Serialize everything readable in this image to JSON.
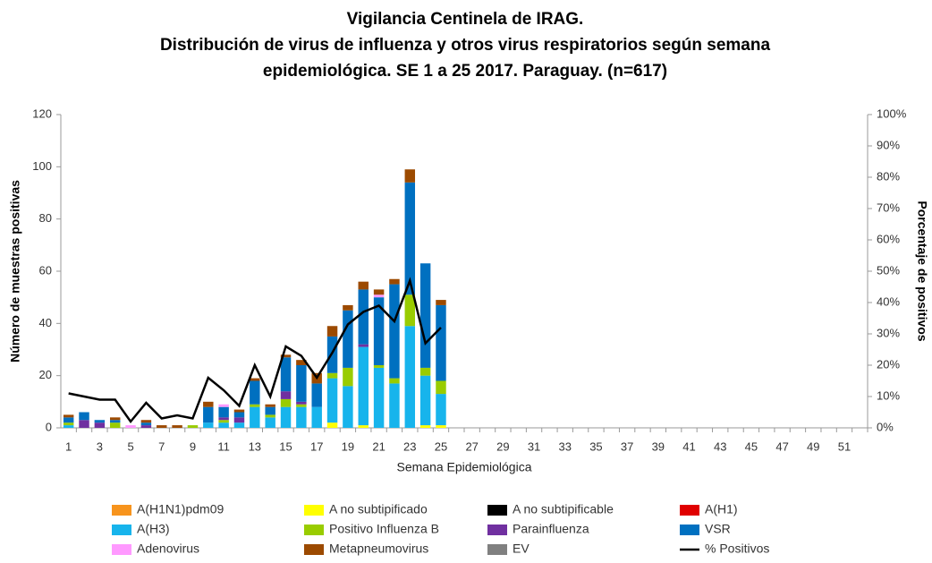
{
  "chart_data": {
    "type": "bar",
    "stacked": true,
    "title": [
      "Vigilancia Centinela de IRAG.",
      "Distribución de virus de influenza y otros virus respiratorios según semana",
      "epidemiológica. SE 1 a 25 2017. Paraguay. (n=617)"
    ],
    "x_label": "Semana Epidemiológica",
    "y_label": "Número de muestras positivas",
    "y2_label": "Porcentaje de positivos",
    "categories": [
      1,
      null,
      3,
      null,
      5,
      null,
      7,
      null,
      9,
      null,
      11,
      null,
      13,
      null,
      15,
      null,
      17,
      null,
      19,
      null,
      21,
      null,
      23,
      null,
      25,
      null,
      27,
      null,
      29,
      null,
      31,
      null,
      33,
      null,
      35,
      null,
      37,
      null,
      39,
      null,
      41,
      null,
      43,
      null,
      45,
      null,
      47,
      null,
      49,
      null,
      51,
      null
    ],
    "ylim": [
      0,
      120
    ],
    "yticks": [
      0,
      20,
      40,
      60,
      80,
      100,
      120
    ],
    "y2lim": [
      0,
      100
    ],
    "y2ticks": [
      {
        "value": 0,
        "label": "0%"
      },
      {
        "value": 10,
        "label": "10%"
      },
      {
        "value": 20,
        "label": "20%"
      },
      {
        "value": 30,
        "label": "30%"
      },
      {
        "value": 40,
        "label": "40%"
      },
      {
        "value": 50,
        "label": "50%"
      },
      {
        "value": 60,
        "label": "60%"
      },
      {
        "value": 70,
        "label": "70%"
      },
      {
        "value": 80,
        "label": "80%"
      },
      {
        "value": 90,
        "label": "90%"
      },
      {
        "value": 100,
        "label": "100%"
      }
    ],
    "series": [
      {
        "name": "A(H1N1)pdm09",
        "color": "#f7941d",
        "values": [
          0,
          0,
          0,
          0,
          0,
          0,
          0,
          0,
          0,
          0,
          0,
          0,
          0,
          0,
          0,
          0,
          0,
          0,
          0,
          0,
          0,
          0,
          0,
          0,
          0,
          null,
          null,
          null,
          null,
          null,
          null,
          null,
          null,
          null,
          null,
          null,
          null,
          null,
          null,
          null,
          null,
          null,
          null,
          null,
          null,
          null,
          null,
          null,
          null,
          null,
          null,
          null
        ]
      },
      {
        "name": "A no subtipificado",
        "color": "#ffff00",
        "values": [
          0,
          0,
          0,
          0,
          0,
          0,
          0,
          0,
          0,
          0,
          0,
          0,
          0,
          0,
          0,
          0,
          0,
          2,
          0,
          1,
          0,
          0,
          0,
          1,
          1,
          null,
          null,
          null,
          null,
          null,
          null,
          null,
          null,
          null,
          null,
          null,
          null,
          null,
          null,
          null,
          null,
          null,
          null,
          null,
          null,
          null,
          null,
          null,
          null,
          null,
          null,
          null
        ]
      },
      {
        "name": "A no subtipificable",
        "color": "#000000",
        "values": [
          0,
          0,
          0,
          0,
          0,
          0,
          0,
          0,
          0,
          0,
          0,
          0,
          0,
          0,
          0,
          0,
          0,
          0,
          0,
          0,
          0,
          0,
          0,
          0,
          0,
          null,
          null,
          null,
          null,
          null,
          null,
          null,
          null,
          null,
          null,
          null,
          null,
          null,
          null,
          null,
          null,
          null,
          null,
          null,
          null,
          null,
          null,
          null,
          null,
          null,
          null,
          null
        ]
      },
      {
        "name": "A(H1)",
        "color": "#e00000",
        "values": [
          0,
          0,
          0,
          0,
          0,
          0,
          0,
          0,
          0,
          0,
          0,
          0,
          0,
          0,
          0,
          0,
          0,
          0,
          0,
          0,
          0,
          0,
          0,
          0,
          0,
          null,
          null,
          null,
          null,
          null,
          null,
          null,
          null,
          null,
          null,
          null,
          null,
          null,
          null,
          null,
          null,
          null,
          null,
          null,
          null,
          null,
          null,
          null,
          null,
          null,
          null,
          null
        ]
      },
      {
        "name": "A(H3)",
        "color": "#17b4ec",
        "values": [
          1,
          0,
          0,
          0,
          0,
          0,
          0,
          0,
          0,
          2,
          2,
          2,
          8,
          4,
          8,
          8,
          8,
          17,
          16,
          30,
          23,
          17,
          39,
          19,
          12,
          null,
          null,
          null,
          null,
          null,
          null,
          null,
          null,
          null,
          null,
          null,
          null,
          null,
          null,
          null,
          null,
          null,
          null,
          null,
          null,
          null,
          null,
          null,
          null,
          null,
          null,
          null
        ]
      },
      {
        "name": "Positivo Influenza  B",
        "color": "#99cc00",
        "values": [
          1,
          0,
          0,
          2,
          0,
          0,
          0,
          0,
          1,
          0,
          1,
          0,
          1,
          1,
          3,
          1,
          0,
          2,
          7,
          0,
          1,
          2,
          12,
          3,
          5,
          null,
          null,
          null,
          null,
          null,
          null,
          null,
          null,
          null,
          null,
          null,
          null,
          null,
          null,
          null,
          null,
          null,
          null,
          null,
          null,
          null,
          null,
          null,
          null,
          null,
          null,
          null
        ]
      },
      {
        "name": "Parainfluenza",
        "color": "#7030a0",
        "values": [
          0,
          3,
          2,
          0,
          0,
          1,
          0,
          0,
          0,
          0,
          1,
          2,
          0,
          0,
          3,
          1,
          0,
          0,
          0,
          1,
          0,
          0,
          0,
          0,
          0,
          null,
          null,
          null,
          null,
          null,
          null,
          null,
          null,
          null,
          null,
          null,
          null,
          null,
          null,
          null,
          null,
          null,
          null,
          null,
          null,
          null,
          null,
          null,
          null,
          null,
          null,
          null
        ]
      },
      {
        "name": "VSR",
        "color": "#0070c0",
        "values": [
          2,
          3,
          1,
          1,
          0,
          1,
          0,
          0,
          0,
          6,
          4,
          2,
          9,
          3,
          13,
          14,
          9,
          14,
          22,
          21,
          26,
          36,
          43,
          40,
          29,
          null,
          null,
          null,
          null,
          null,
          null,
          null,
          null,
          null,
          null,
          null,
          null,
          null,
          null,
          null,
          null,
          null,
          null,
          null,
          null,
          null,
          null,
          null,
          null,
          null,
          null,
          null
        ]
      },
      {
        "name": "Adenovirus",
        "color": "#ff99ff",
        "values": [
          0,
          0,
          0,
          0,
          1,
          0,
          0,
          0,
          0,
          0,
          1,
          0,
          0,
          0,
          0,
          0,
          0,
          0,
          0,
          0,
          1,
          0,
          0,
          0,
          0,
          null,
          null,
          null,
          null,
          null,
          null,
          null,
          null,
          null,
          null,
          null,
          null,
          null,
          null,
          null,
          null,
          null,
          null,
          null,
          null,
          null,
          null,
          null,
          null,
          null,
          null,
          null
        ]
      },
      {
        "name": "Metapneumovirus",
        "color": "#9c4a00",
        "values": [
          1,
          0,
          0,
          1,
          0,
          1,
          1,
          1,
          0,
          2,
          0,
          1,
          1,
          1,
          1,
          2,
          4,
          4,
          2,
          3,
          2,
          2,
          5,
          0,
          2,
          null,
          null,
          null,
          null,
          null,
          null,
          null,
          null,
          null,
          null,
          null,
          null,
          null,
          null,
          null,
          null,
          null,
          null,
          null,
          null,
          null,
          null,
          null,
          null,
          null,
          null,
          null
        ]
      },
      {
        "name": "EV",
        "color": "#808080",
        "values": [
          0,
          0,
          0,
          0,
          0,
          0,
          0,
          0,
          0,
          0,
          0,
          0,
          0,
          0,
          0,
          0,
          0,
          0,
          0,
          0,
          0,
          0,
          0,
          0,
          0,
          null,
          null,
          null,
          null,
          null,
          null,
          null,
          null,
          null,
          null,
          null,
          null,
          null,
          null,
          null,
          null,
          null,
          null,
          null,
          null,
          null,
          null,
          null,
          null,
          null,
          null,
          null
        ]
      },
      {
        "name": "% Positivos",
        "color": "#000000",
        "type": "line",
        "axis": "y2",
        "values": [
          11,
          10,
          9,
          9,
          2,
          8,
          3,
          4,
          3,
          16,
          12,
          7,
          20,
          10,
          26,
          23,
          16,
          24,
          33,
          37,
          39,
          34,
          47,
          27,
          32,
          null,
          null,
          null,
          null,
          null,
          null,
          null,
          null,
          null,
          null,
          null,
          null,
          null,
          null,
          null,
          null,
          null,
          null,
          null,
          null,
          null,
          null,
          null,
          null,
          null,
          null,
          null
        ]
      }
    ]
  }
}
